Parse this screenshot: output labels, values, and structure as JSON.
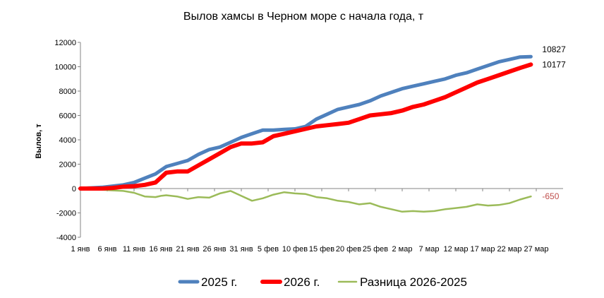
{
  "chart_data": {
    "type": "line",
    "title": "Вылов хамсы в Черном море с начала года, т",
    "ylabel": "Вылов, т",
    "xlabel": "",
    "ylim": [
      -4000,
      12000
    ],
    "yticks": [
      -4000,
      -2000,
      0,
      2000,
      4000,
      6000,
      8000,
      10000,
      12000
    ],
    "xticks": [
      "1 янв",
      "6 янв",
      "11 янв",
      "16 янв",
      "21 янв",
      "26 янв",
      "31 янв",
      "5 фев",
      "10 фев",
      "15 фев",
      "20 фев",
      "25 фев",
      "2 мар",
      "7 мар",
      "12 мар",
      "17 мар",
      "22 мар",
      "27 мар"
    ],
    "grid": false,
    "legend_position": "bottom",
    "series": [
      {
        "name": "2025 г.",
        "color": "#4F81BD",
        "end_label": "10827",
        "x": [
          0,
          2,
          4,
          6,
          8,
          10,
          12,
          14,
          15,
          16,
          18,
          20,
          22,
          24,
          26,
          28,
          30,
          32,
          34,
          36,
          38,
          40,
          42,
          44,
          46,
          48,
          50,
          52,
          54,
          56,
          58,
          60,
          62,
          64,
          66,
          68,
          70,
          72,
          74,
          76,
          78,
          80,
          82,
          84
        ],
        "values": [
          0,
          50,
          100,
          200,
          300,
          500,
          850,
          1200,
          1500,
          1800,
          2050,
          2300,
          2800,
          3200,
          3400,
          3800,
          4200,
          4500,
          4800,
          4800,
          4850,
          4900,
          5100,
          5700,
          6100,
          6500,
          6700,
          6900,
          7200,
          7600,
          7900,
          8200,
          8400,
          8600,
          8800,
          9000,
          9300,
          9500,
          9800,
          10100,
          10400,
          10600,
          10800,
          10827
        ]
      },
      {
        "name": "2026 г.",
        "color": "#FF0000",
        "end_label": "10177",
        "x": [
          0,
          2,
          4,
          6,
          7,
          8,
          10,
          12,
          14,
          15,
          16,
          18,
          20,
          22,
          24,
          26,
          28,
          30,
          32,
          34,
          36,
          38,
          40,
          42,
          44,
          46,
          48,
          50,
          52,
          54,
          56,
          58,
          60,
          62,
          64,
          66,
          68,
          70,
          72,
          74,
          76,
          78,
          80,
          82,
          84
        ],
        "values": [
          0,
          0,
          0,
          50,
          100,
          150,
          200,
          300,
          500,
          900,
          1300,
          1400,
          1400,
          1900,
          2400,
          2900,
          3400,
          3700,
          3700,
          3800,
          4300,
          4500,
          4700,
          4900,
          5100,
          5200,
          5300,
          5400,
          5700,
          6000,
          6100,
          6200,
          6400,
          6700,
          6900,
          7200,
          7500,
          7900,
          8300,
          8700,
          9000,
          9300,
          9600,
          9900,
          10177
        ]
      },
      {
        "name": "Разница 2026-2025",
        "color": "#9BBB59",
        "end_label": "-650",
        "end_label_color": "#C0504D",
        "x": [
          0,
          2,
          4,
          6,
          8,
          10,
          12,
          14,
          15,
          16,
          18,
          20,
          22,
          24,
          26,
          28,
          30,
          32,
          34,
          36,
          38,
          40,
          42,
          44,
          46,
          48,
          50,
          52,
          54,
          56,
          58,
          60,
          62,
          64,
          66,
          68,
          70,
          72,
          74,
          76,
          78,
          80,
          82,
          84
        ],
        "values": [
          0,
          -50,
          -100,
          -150,
          -200,
          -350,
          -650,
          -700,
          -600,
          -550,
          -650,
          -850,
          -700,
          -750,
          -400,
          -200,
          -600,
          -1000,
          -800,
          -500,
          -300,
          -400,
          -450,
          -700,
          -800,
          -1000,
          -1100,
          -1300,
          -1200,
          -1500,
          -1700,
          -1900,
          -1850,
          -1900,
          -1850,
          -1700,
          -1600,
          -1500,
          -1300,
          -1400,
          -1350,
          -1200,
          -900,
          -650
        ]
      }
    ]
  }
}
